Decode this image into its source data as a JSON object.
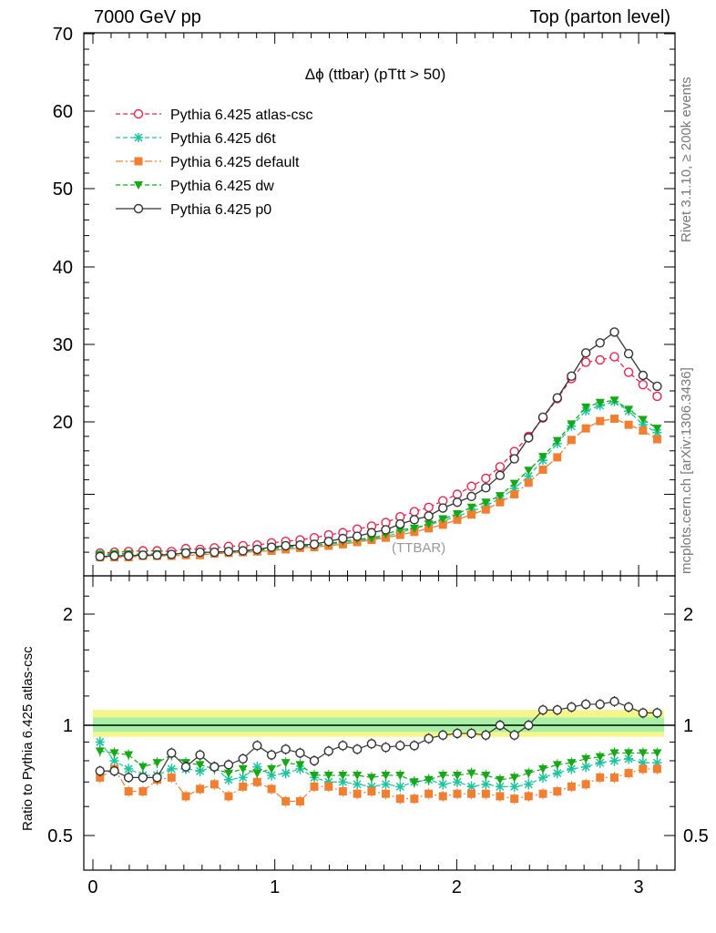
{
  "header": {
    "left": "7000 GeV pp",
    "right": "Top (parton level)"
  },
  "side_labels": {
    "rivet": "Rivet 3.1.10, ≥ 200k events",
    "mcplots": "mcplots.cern.ch [arXiv:1306.3436]"
  },
  "chart_data": [
    {
      "type": "line",
      "panel": "main",
      "title": "Δϕ (ttbar) (pTtt > 50)",
      "watermark": "(TTBAR)",
      "xlabel": "",
      "ylabel": "",
      "xlim": [
        -0.05,
        3.2
      ],
      "ylim": [
        0,
        70
      ],
      "yticks": [
        20,
        30,
        40,
        50,
        60,
        70
      ],
      "xticks": [
        0,
        1,
        2,
        3
      ],
      "legend_position": "top-left",
      "x": [
        0.039,
        0.118,
        0.196,
        0.275,
        0.353,
        0.432,
        0.511,
        0.589,
        0.668,
        0.746,
        0.825,
        0.903,
        0.982,
        1.06,
        1.139,
        1.217,
        1.296,
        1.374,
        1.453,
        1.532,
        1.61,
        1.689,
        1.767,
        1.846,
        1.924,
        2.003,
        2.081,
        2.16,
        2.238,
        2.317,
        2.395,
        2.474,
        2.553,
        2.631,
        2.71,
        2.788,
        2.867,
        2.945,
        3.024,
        3.102
      ],
      "series": [
        {
          "name": "Pythia 6.425 atlas-csc",
          "color": "#e8264d",
          "marker": "open-circle",
          "dash": "5,3",
          "values": [
            1.9,
            2.0,
            2.1,
            2.2,
            2.2,
            2.1,
            2.5,
            2.4,
            2.6,
            2.8,
            2.9,
            3.0,
            3.3,
            3.5,
            3.7,
            4.0,
            4.4,
            4.7,
            5.2,
            5.6,
            6.1,
            6.9,
            7.6,
            8.2,
            9.1,
            10.0,
            11.1,
            12.2,
            13.8,
            15.9,
            18.0,
            20.5,
            23.0,
            25.6,
            27.7,
            28.0,
            28.4,
            26.4,
            24.8,
            23.3
          ]
        },
        {
          "name": "Pythia 6.425 d6t",
          "color": "#1ec3a0",
          "marker": "star",
          "dash": "5,3",
          "values": [
            1.7,
            1.6,
            1.6,
            1.6,
            1.6,
            1.6,
            1.9,
            1.8,
            2.0,
            2.0,
            2.1,
            2.3,
            2.4,
            2.6,
            2.8,
            2.9,
            3.1,
            3.3,
            3.6,
            3.8,
            4.2,
            4.7,
            5.3,
            5.8,
            6.3,
            7.0,
            7.6,
            8.4,
            9.4,
            10.8,
            12.5,
            14.7,
            17.0,
            19.4,
            21.4,
            22.1,
            22.6,
            21.4,
            19.6,
            18.5
          ]
        },
        {
          "name": "Pythia 6.425 default",
          "color": "#f07f31",
          "marker": "filled-square",
          "dash": "8,3,2,3",
          "values": [
            1.3,
            1.3,
            1.3,
            1.5,
            1.5,
            1.5,
            1.6,
            1.6,
            1.8,
            1.9,
            2.0,
            2.1,
            2.2,
            2.4,
            2.6,
            2.7,
            2.9,
            3.1,
            3.4,
            3.7,
            4.0,
            4.4,
            4.8,
            5.3,
            5.8,
            6.5,
            7.2,
            7.9,
            8.9,
            10.0,
            11.6,
            13.4,
            15.1,
            17.5,
            19.1,
            20.1,
            20.4,
            19.6,
            18.8,
            17.6
          ]
        },
        {
          "name": "Pythia 6.425 dw",
          "color": "#16a816",
          "marker": "filled-down-triangle",
          "dash": "5,3",
          "values": [
            1.7,
            1.8,
            1.8,
            1.7,
            1.8,
            1.7,
            2.0,
            1.9,
            2.0,
            2.1,
            2.2,
            2.2,
            2.5,
            2.8,
            2.9,
            2.9,
            3.2,
            3.5,
            3.8,
            3.9,
            4.5,
            5.1,
            5.3,
            5.9,
            6.6,
            7.3,
            8.2,
            8.9,
            9.8,
            11.5,
            13.3,
            15.2,
            17.4,
            19.7,
            21.9,
            22.5,
            22.8,
            21.6,
            20.3,
            19.1
          ]
        },
        {
          "name": "Pythia 6.425 p0",
          "color": "#333333",
          "marker": "open-circle",
          "dash": "",
          "values": [
            1.4,
            1.5,
            1.5,
            1.6,
            1.6,
            1.7,
            1.9,
            2.0,
            2.0,
            2.1,
            2.2,
            2.4,
            2.7,
            2.9,
            3.0,
            3.1,
            3.5,
            3.9,
            4.2,
            4.7,
            5.1,
            5.9,
            6.5,
            7.0,
            8.1,
            8.9,
            9.7,
            10.9,
            12.6,
            14.9,
            17.8,
            20.6,
            23.1,
            25.9,
            28.9,
            30.2,
            31.6,
            28.8,
            26.0,
            24.6
          ]
        }
      ]
    },
    {
      "type": "line",
      "panel": "ratio",
      "ylabel": "Ratio to Pythia 6.425 atlas-csc",
      "xlim": [
        -0.05,
        3.2
      ],
      "ylim": [
        0.4,
        2.3
      ],
      "ytick_labels": [
        "0.5",
        "1",
        "2"
      ],
      "xtick_labels": [
        "0",
        "1",
        "2",
        "3"
      ],
      "reference_line": 1.0,
      "band_colors": [
        "#f4f58b",
        "#a8f0a8"
      ],
      "series": [
        {
          "name": "Pythia 6.425 d6t",
          "color": "#1ec3a0",
          "values": [
            0.9,
            0.8,
            0.76,
            0.73,
            0.73,
            0.76,
            0.76,
            0.75,
            0.77,
            0.71,
            0.72,
            0.77,
            0.73,
            0.74,
            0.76,
            0.72,
            0.7,
            0.7,
            0.69,
            0.68,
            0.69,
            0.68,
            0.7,
            0.71,
            0.69,
            0.7,
            0.68,
            0.69,
            0.68,
            0.68,
            0.69,
            0.72,
            0.74,
            0.76,
            0.77,
            0.79,
            0.8,
            0.81,
            0.79,
            0.79
          ]
        },
        {
          "name": "Pythia 6.425 default",
          "color": "#f07f31",
          "values": [
            0.72,
            0.76,
            0.66,
            0.66,
            0.71,
            0.72,
            0.64,
            0.67,
            0.69,
            0.64,
            0.68,
            0.7,
            0.67,
            0.62,
            0.62,
            0.68,
            0.68,
            0.66,
            0.65,
            0.66,
            0.65,
            0.63,
            0.63,
            0.65,
            0.64,
            0.65,
            0.65,
            0.65,
            0.64,
            0.63,
            0.64,
            0.65,
            0.66,
            0.68,
            0.69,
            0.72,
            0.72,
            0.74,
            0.76,
            0.76
          ]
        },
        {
          "name": "Pythia 6.425 dw",
          "color": "#16a816",
          "values": [
            0.85,
            0.84,
            0.83,
            0.77,
            0.79,
            0.83,
            0.79,
            0.78,
            0.76,
            0.74,
            0.76,
            0.74,
            0.76,
            0.79,
            0.78,
            0.73,
            0.73,
            0.73,
            0.73,
            0.72,
            0.73,
            0.73,
            0.7,
            0.71,
            0.73,
            0.73,
            0.74,
            0.73,
            0.71,
            0.72,
            0.74,
            0.76,
            0.78,
            0.79,
            0.81,
            0.82,
            0.84,
            0.84,
            0.84,
            0.84
          ]
        },
        {
          "name": "Pythia 6.425 p0",
          "color": "#333333",
          "values": [
            0.75,
            0.75,
            0.72,
            0.72,
            0.72,
            0.84,
            0.77,
            0.83,
            0.77,
            0.78,
            0.81,
            0.88,
            0.83,
            0.86,
            0.84,
            0.8,
            0.85,
            0.88,
            0.86,
            0.89,
            0.87,
            0.88,
            0.88,
            0.92,
            0.94,
            0.95,
            0.95,
            0.94,
            1.0,
            0.94,
            1.0,
            1.1,
            1.1,
            1.12,
            1.14,
            1.14,
            1.16,
            1.12,
            1.08,
            1.08
          ]
        }
      ]
    }
  ]
}
